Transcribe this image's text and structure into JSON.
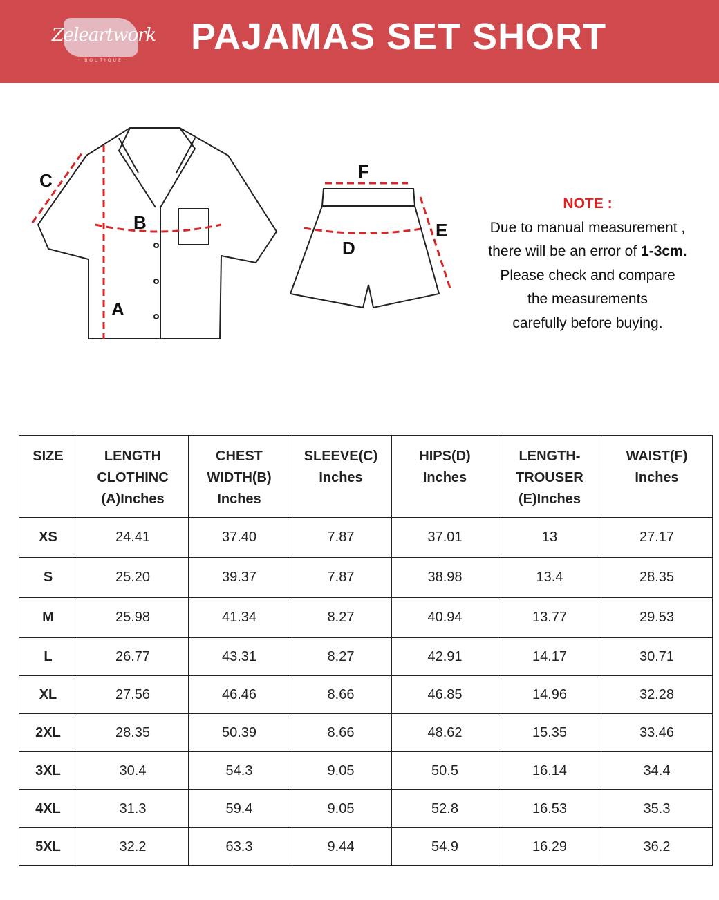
{
  "header": {
    "logo_text": "Zeleartwork",
    "logo_subtext": "BOUTIQUE",
    "title": "PAJAMAS SET SHORT",
    "color": "#d04a4d"
  },
  "diagram": {
    "labels": {
      "a": "A",
      "b": "B",
      "c": "C",
      "d": "D",
      "e": "E",
      "f": "F"
    },
    "measure_line_color": "#d62828"
  },
  "note": {
    "heading": "NOTE :",
    "line1": "Due to manual measurement ,",
    "line2_prefix": "there will be an error of ",
    "line2_bold": "1-3cm.",
    "line3": "Please check and compare",
    "line4": "the measurements",
    "line5": "carefully before buying."
  },
  "table": {
    "headers": [
      [
        "SIZE"
      ],
      [
        "LENGTH",
        "CLOTHINC",
        "(A)Inches"
      ],
      [
        "CHEST",
        "WIDTH(B)",
        "Inches"
      ],
      [
        "SLEEVE(C)",
        "Inches"
      ],
      [
        "HIPS(D)",
        "Inches"
      ],
      [
        "LENGTH-",
        "TROUSER",
        "(E)Inches"
      ],
      [
        "WAIST(F)",
        "Inches"
      ]
    ],
    "rows": [
      [
        "XS",
        "24.41",
        "37.40",
        "7.87",
        "37.01",
        "13",
        "27.17"
      ],
      [
        "S",
        "25.20",
        "39.37",
        "7.87",
        "38.98",
        "13.4",
        "28.35"
      ],
      [
        "M",
        "25.98",
        "41.34",
        "8.27",
        "40.94",
        "13.77",
        "29.53"
      ],
      [
        "L",
        "26.77",
        "43.31",
        "8.27",
        "42.91",
        "14.17",
        "30.71"
      ],
      [
        "XL",
        "27.56",
        "46.46",
        "8.66",
        "46.85",
        "14.96",
        "32.28"
      ],
      [
        "2XL",
        "28.35",
        "50.39",
        "8.66",
        "48.62",
        "15.35",
        "33.46"
      ],
      [
        "3XL",
        "30.4",
        "54.3",
        "9.05",
        "50.5",
        "16.14",
        "34.4"
      ],
      [
        "4XL",
        "31.3",
        "59.4",
        "9.05",
        "52.8",
        "16.53",
        "35.3"
      ],
      [
        "5XL",
        "32.2",
        "63.3",
        "9.44",
        "54.9",
        "16.29",
        "36.2"
      ]
    ]
  }
}
